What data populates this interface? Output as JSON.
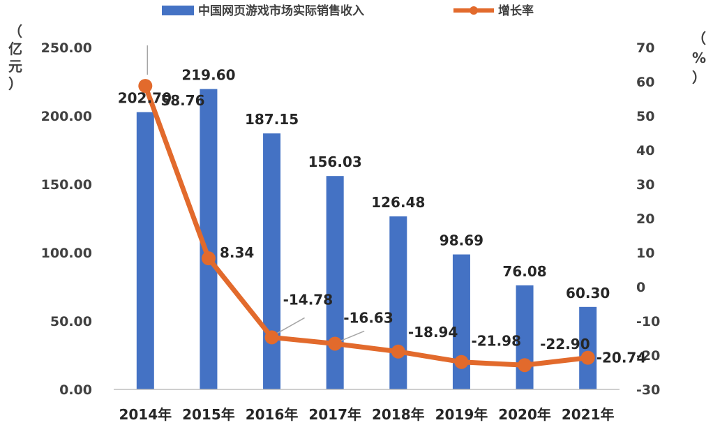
{
  "chart_data": {
    "type": "bar+line",
    "categories": [
      "2014年",
      "2015年",
      "2016年",
      "2017年",
      "2018年",
      "2019年",
      "2020年",
      "2021年"
    ],
    "series": [
      {
        "name": "中国网页游戏市场实际销售收入",
        "type": "bar",
        "axis": "left",
        "values": [
          202.7,
          219.6,
          187.15,
          156.03,
          126.48,
          98.69,
          76.08,
          60.3
        ],
        "labels": [
          "202.70",
          "219.60",
          "187.15",
          "156.03",
          "126.48",
          "98.69",
          "76.08",
          "60.30"
        ],
        "color": "#4472C4"
      },
      {
        "name": "增长率",
        "type": "line",
        "axis": "right",
        "values": [
          58.76,
          8.34,
          -14.78,
          -16.63,
          -18.94,
          -21.98,
          -22.9,
          -20.74
        ],
        "labels": [
          "58.76",
          "8.34",
          "-14.78",
          "-16.63",
          "-18.94",
          "-21.98",
          "-22.90",
          "-20.74"
        ],
        "color": "#E26A2C"
      }
    ],
    "y_left": {
      "unit_label": [
        "（",
        "亿",
        "元",
        "）"
      ],
      "ylim": [
        0,
        250
      ],
      "ticks": [
        "0.00",
        "50.00",
        "100.00",
        "150.00",
        "200.00",
        "250.00"
      ]
    },
    "y_right": {
      "unit_label": [
        "（",
        "%",
        "）"
      ],
      "ylim": [
        -30,
        70
      ],
      "ticks": [
        "-30",
        "-20",
        "-10",
        "0",
        "10",
        "20",
        "30",
        "40",
        "50",
        "60",
        "70"
      ]
    },
    "legend_position": "top-center",
    "grid": false
  }
}
